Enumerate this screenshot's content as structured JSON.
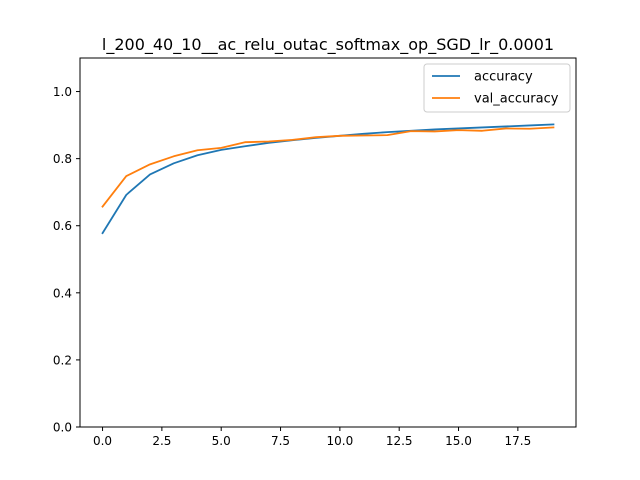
{
  "chart_data": {
    "type": "line",
    "title": "l_200_40_10__ac_relu_outac_softmax_op_SGD_lr_0.0001",
    "xlabel": "",
    "ylabel": "",
    "xlim": [
      -0.95,
      19.95
    ],
    "ylim": [
      0.0,
      1.1
    ],
    "x_ticks": [
      0.0,
      2.5,
      5.0,
      7.5,
      10.0,
      12.5,
      15.0,
      17.5
    ],
    "x_tick_labels": [
      "0.0",
      "2.5",
      "5.0",
      "7.5",
      "10.0",
      "12.5",
      "15.0",
      "17.5"
    ],
    "y_ticks": [
      0.0,
      0.2,
      0.4,
      0.6,
      0.8,
      1.0
    ],
    "y_tick_labels": [
      "0.0",
      "0.2",
      "0.4",
      "0.6",
      "0.8",
      "1.0"
    ],
    "grid": false,
    "legend_position": "upper-right",
    "x": [
      0,
      1,
      2,
      3,
      4,
      5,
      6,
      7,
      8,
      9,
      10,
      11,
      12,
      13,
      14,
      15,
      16,
      17,
      18,
      19
    ],
    "series": [
      {
        "name": "accuracy",
        "color": "#1f77b4",
        "values": [
          0.578,
          0.692,
          0.753,
          0.786,
          0.81,
          0.826,
          0.837,
          0.847,
          0.855,
          0.862,
          0.868,
          0.874,
          0.879,
          0.883,
          0.887,
          0.89,
          0.893,
          0.896,
          0.899,
          0.902
        ]
      },
      {
        "name": "val_accuracy",
        "color": "#ff7f0e",
        "values": [
          0.657,
          0.748,
          0.783,
          0.807,
          0.825,
          0.832,
          0.849,
          0.851,
          0.856,
          0.864,
          0.868,
          0.869,
          0.87,
          0.882,
          0.881,
          0.885,
          0.883,
          0.89,
          0.889,
          0.893
        ]
      }
    ]
  }
}
